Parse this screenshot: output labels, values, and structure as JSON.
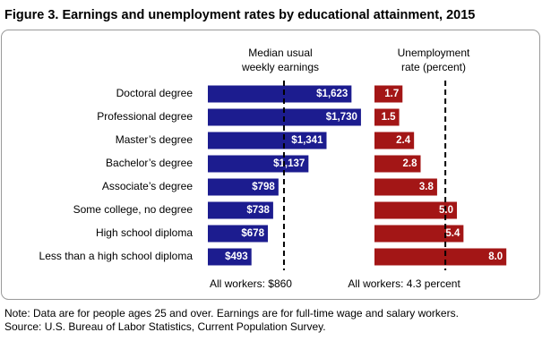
{
  "figure_title": "Figure 3. Earnings and unemployment rates by educational attainment, 2015",
  "chart_data": [
    {
      "type": "bar",
      "orientation": "horizontal",
      "title": [
        "Median usual",
        "weekly earnings"
      ],
      "categories": [
        "Doctoral degree",
        "Professional degree",
        "Master’s degree",
        "Bachelor’s degree",
        "Associate’s degree",
        "Some college, no degree",
        "High school diploma",
        "Less than a high school diploma"
      ],
      "values": [
        1623,
        1730,
        1341,
        1137,
        798,
        738,
        678,
        493
      ],
      "value_labels": [
        "$1,623",
        "$1,730",
        "$1,341",
        "$1,137",
        "$798",
        "$738",
        "$678",
        "$493"
      ],
      "color": "#1c1c8f",
      "reference": {
        "value": 860,
        "label": "All workers: $860"
      }
    },
    {
      "type": "bar",
      "orientation": "horizontal",
      "title": [
        "Unemployment",
        "rate (percent)"
      ],
      "values": [
        1.7,
        1.5,
        2.4,
        2.8,
        3.8,
        5.0,
        5.4,
        8.0
      ],
      "value_labels": [
        "1.7",
        "1.5",
        "2.4",
        "2.8",
        "3.8",
        "5.0",
        "5.4",
        "8.0"
      ],
      "color": "#a31616",
      "reference": {
        "value": 4.3,
        "label": "All workers: 4.3 percent"
      }
    }
  ],
  "notes": [
    "Note: Data are for people ages 25 and over. Earnings are for full-time wage and salary workers.",
    "Source: U.S. Bureau of Labor Statistics, Current Population Survey."
  ]
}
